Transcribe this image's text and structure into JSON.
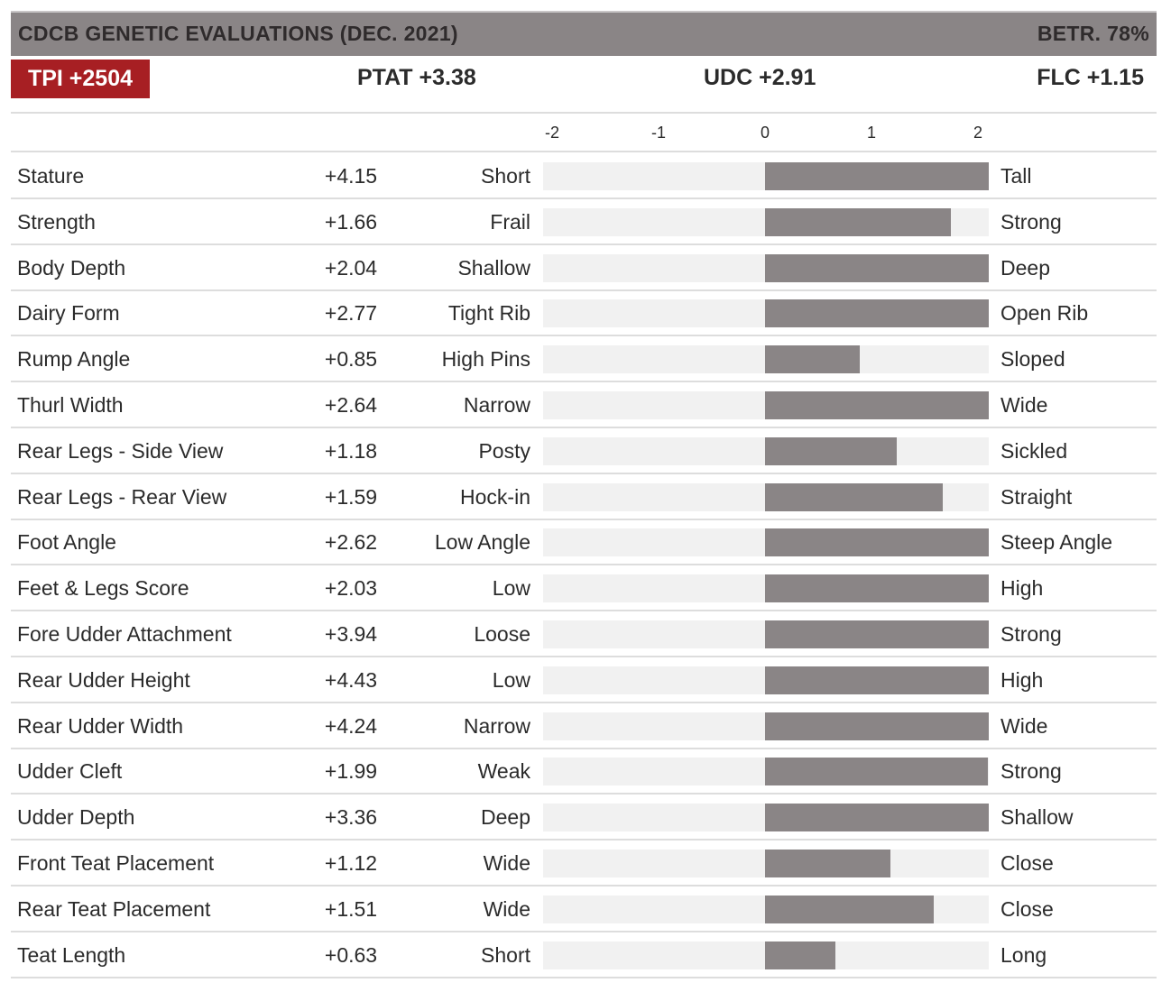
{
  "header": {
    "title": "CDCB GENETIC EVALUATIONS (DEC. 2021)",
    "betr": "BETR. 78%"
  },
  "summary": {
    "tpi": "TPI +2504",
    "ptat": "PTAT +3.38",
    "udc": "UDC +2.91",
    "flc": "FLC +1.15"
  },
  "colors": {
    "accent": "#a71f23",
    "bar": "#8a8586",
    "track": "#f1f1f1",
    "header": "#8a8586"
  },
  "chart_data": {
    "type": "bar",
    "orientation": "horizontal",
    "xlim": [
      -2,
      2
    ],
    "x_ticks": [
      "-2",
      "-1",
      "0",
      "1",
      "2"
    ],
    "grid": false,
    "categories": [
      "Stature",
      "Strength",
      "Body Depth",
      "Dairy Form",
      "Rump Angle",
      "Thurl Width",
      "Rear Legs - Side View",
      "Rear Legs - Rear View",
      "Foot Angle",
      "Feet & Legs Score",
      "Fore Udder Attachment",
      "Rear Udder Height",
      "Rear Udder Width",
      "Udder Cleft",
      "Udder Depth",
      "Front Teat Placement",
      "Rear Teat Placement",
      "Teat Length"
    ],
    "values": [
      4.15,
      1.66,
      2.04,
      2.77,
      0.85,
      2.64,
      1.18,
      1.59,
      2.62,
      2.03,
      3.94,
      4.43,
      4.24,
      1.99,
      3.36,
      1.12,
      1.51,
      0.63
    ],
    "value_labels": [
      "+4.15",
      "+1.66",
      "+2.04",
      "+2.77",
      "+0.85",
      "+2.64",
      "+1.18",
      "+1.59",
      "+2.62",
      "+2.03",
      "+3.94",
      "+4.43",
      "+4.24",
      "+1.99",
      "+3.36",
      "+1.12",
      "+1.51",
      "+0.63"
    ],
    "low_labels": [
      "Short",
      "Frail",
      "Shallow",
      "Tight Rib",
      "High Pins",
      "Narrow",
      "Posty",
      "Hock-in",
      "Low Angle",
      "Low",
      "Loose",
      "Low",
      "Narrow",
      "Weak",
      "Deep",
      "Wide",
      "Wide",
      "Short"
    ],
    "high_labels": [
      "Tall",
      "Strong",
      "Deep",
      "Open Rib",
      "Sloped",
      "Wide",
      "Sickled",
      "Straight",
      "Steep Angle",
      "High",
      "Strong",
      "High",
      "Wide",
      "Strong",
      "Shallow",
      "Close",
      "Close",
      "Long"
    ]
  }
}
